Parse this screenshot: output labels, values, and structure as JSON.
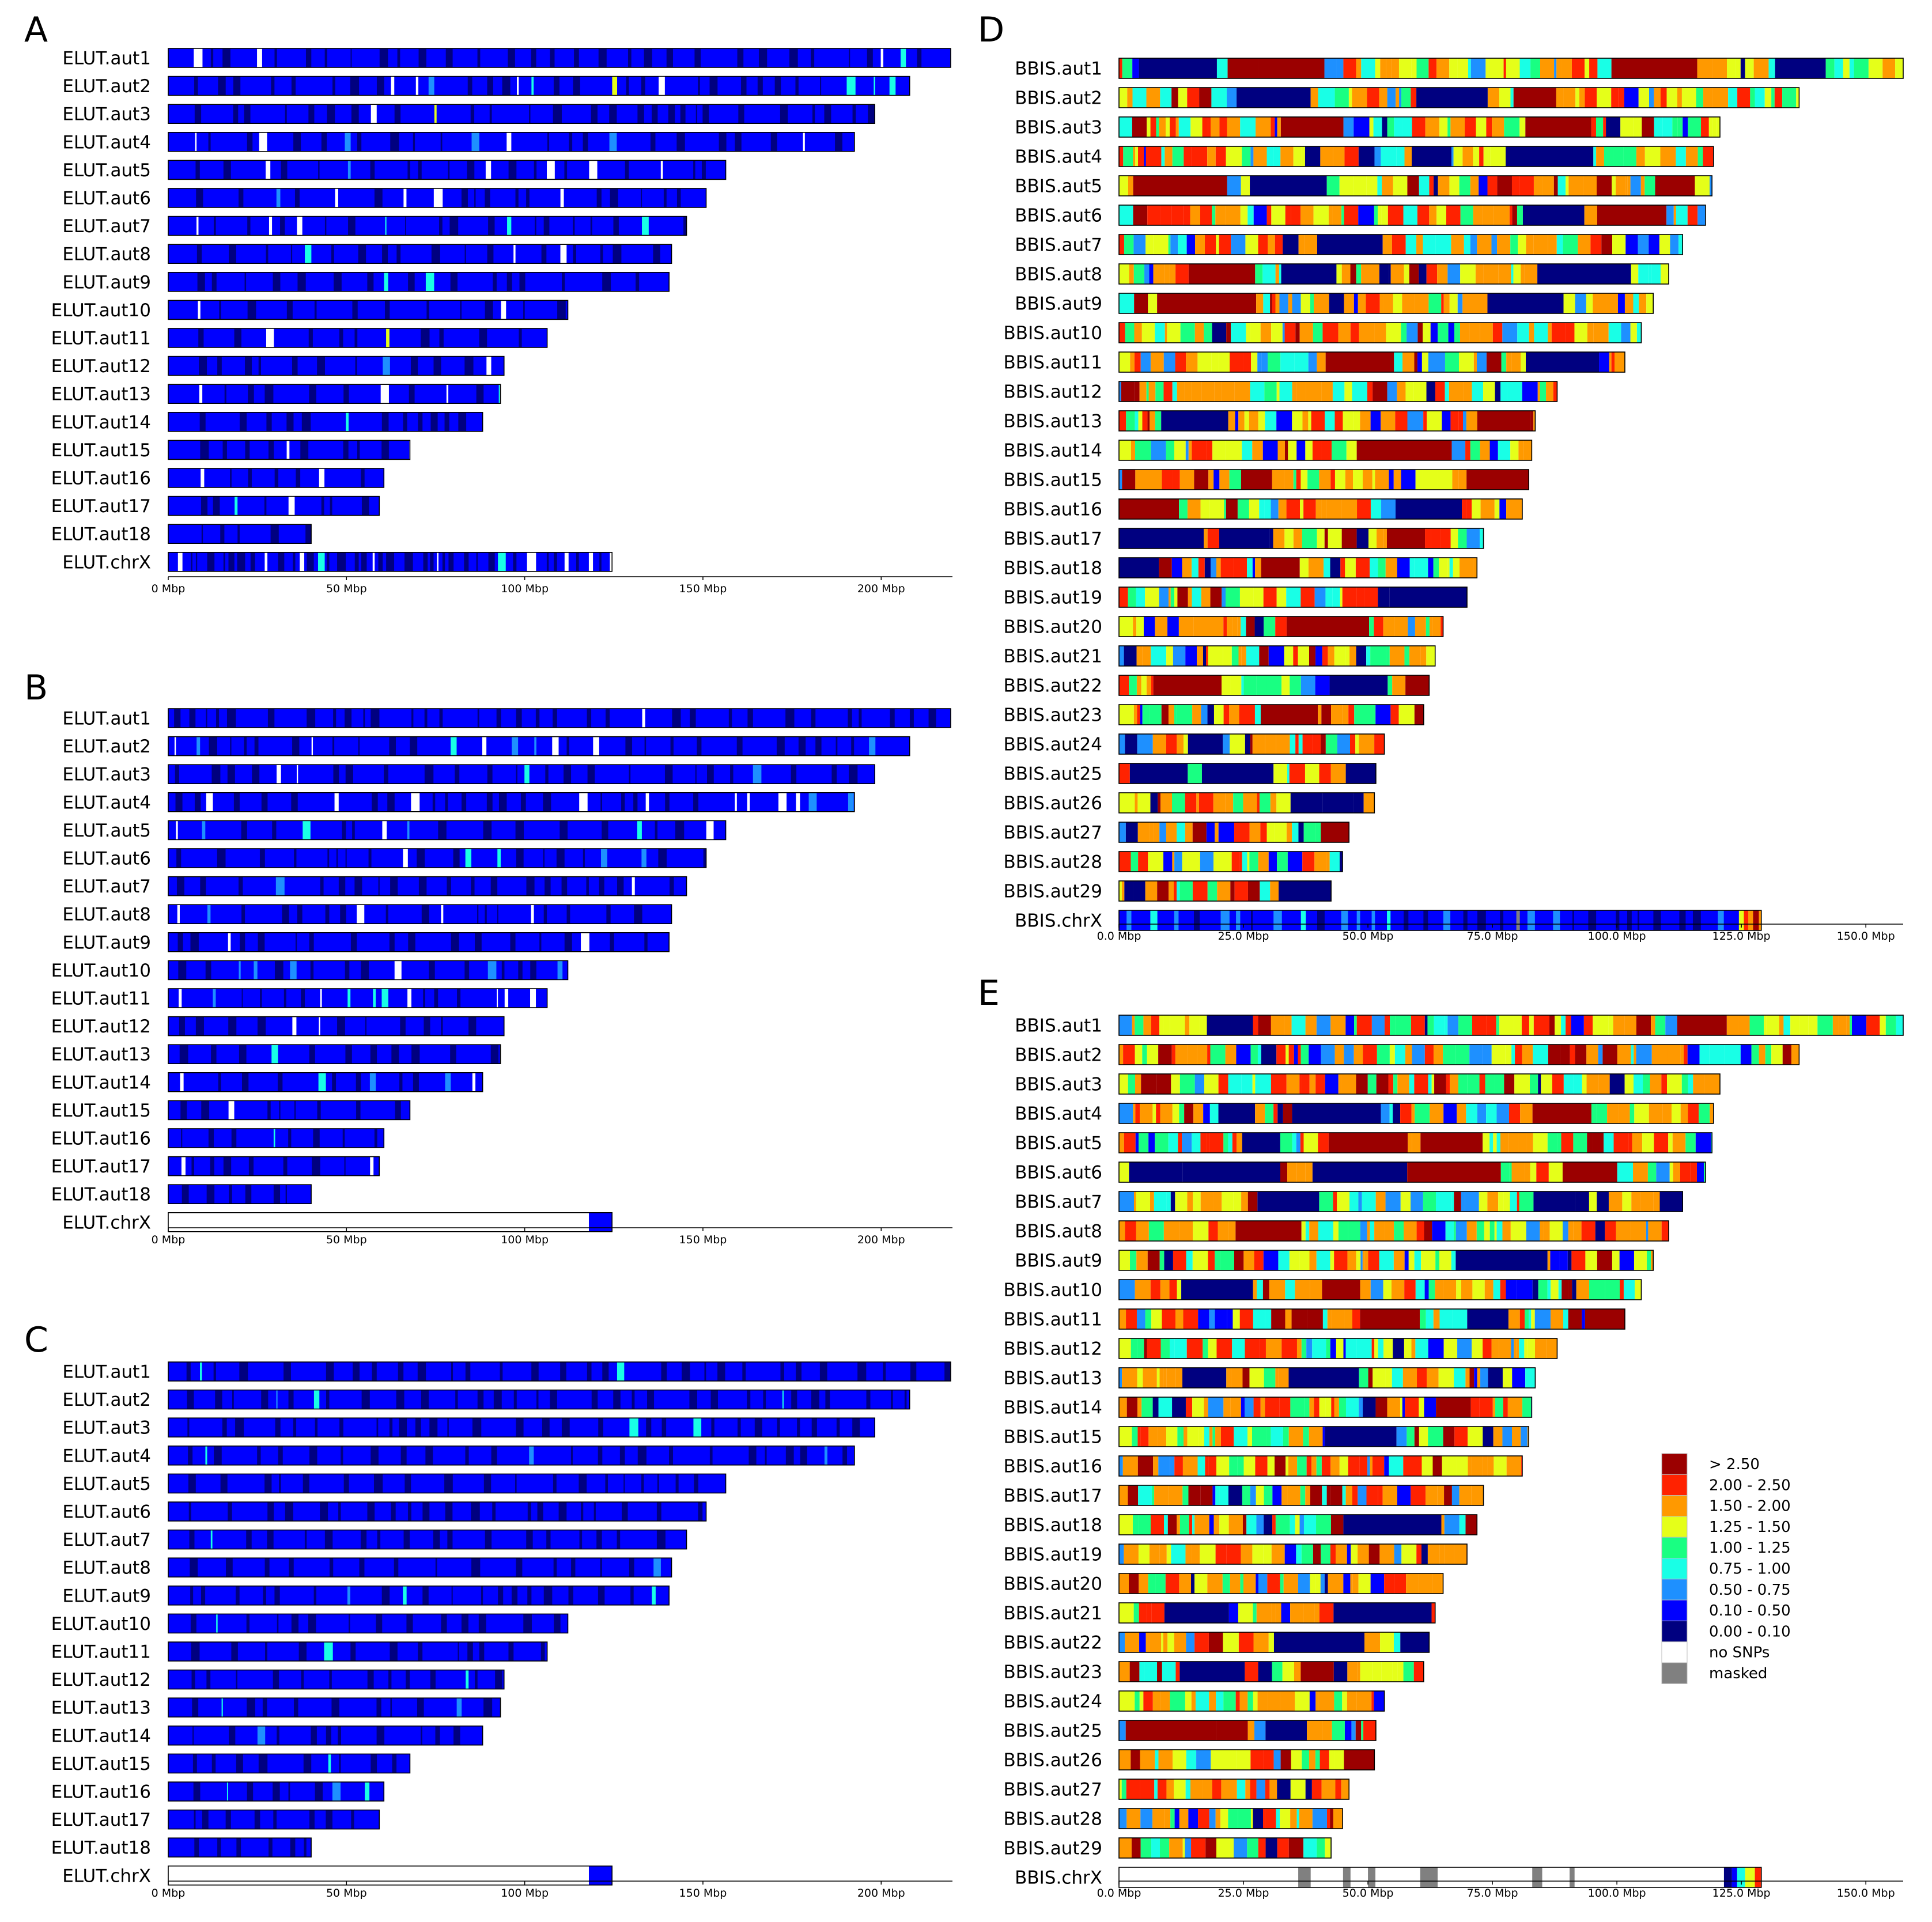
{
  "chart_data": [
    {
      "panel": "A",
      "type": "heatmap",
      "title": "",
      "chromosomes": [
        {
          "name": "ELUT.aut1",
          "length": 219.5
        },
        {
          "name": "ELUT.aut2",
          "length": 208.0
        },
        {
          "name": "ELUT.aut3",
          "length": 198.2
        },
        {
          "name": "ELUT.aut4",
          "length": 192.5
        },
        {
          "name": "ELUT.aut5",
          "length": 156.4
        },
        {
          "name": "ELUT.aut6",
          "length": 150.9
        },
        {
          "name": "ELUT.aut7",
          "length": 145.4
        },
        {
          "name": "ELUT.aut8",
          "length": 141.2
        },
        {
          "name": "ELUT.aut9",
          "length": 140.5
        },
        {
          "name": "ELUT.aut10",
          "length": 112.1
        },
        {
          "name": "ELUT.aut11",
          "length": 106.3
        },
        {
          "name": "ELUT.aut12",
          "length": 94.2
        },
        {
          "name": "ELUT.aut13",
          "length": 93.2
        },
        {
          "name": "ELUT.aut14",
          "length": 88.2
        },
        {
          "name": "ELUT.aut15",
          "length": 67.8
        },
        {
          "name": "ELUT.aut16",
          "length": 60.5
        },
        {
          "name": "ELUT.aut17",
          "length": 59.2
        },
        {
          "name": "ELUT.aut18",
          "length": 40.1
        },
        {
          "name": "ELUT.chrX",
          "length": 124.5
        }
      ],
      "x_ticks": [
        0,
        50,
        100,
        150,
        200
      ],
      "x_tick_labels": [
        "0 Mbp",
        "50 Mbp",
        "100 Mbp",
        "150 Mbp",
        "200 Mbp"
      ],
      "xlim": [
        0,
        220
      ],
      "base_bin": "0.10 - 0.50",
      "speckle_bins": [
        "0.00 - 0.10",
        "no SNPs",
        "0.50 - 0.75",
        "0.75 - 1.00",
        "1.25 - 1.50"
      ],
      "chrX_no_snps_until": null
    },
    {
      "panel": "B",
      "type": "heatmap",
      "title": "",
      "chromosomes": [
        {
          "name": "ELUT.aut1",
          "length": 219.5
        },
        {
          "name": "ELUT.aut2",
          "length": 208.0
        },
        {
          "name": "ELUT.aut3",
          "length": 198.2
        },
        {
          "name": "ELUT.aut4",
          "length": 192.5
        },
        {
          "name": "ELUT.aut5",
          "length": 156.4
        },
        {
          "name": "ELUT.aut6",
          "length": 150.9
        },
        {
          "name": "ELUT.aut7",
          "length": 145.4
        },
        {
          "name": "ELUT.aut8",
          "length": 141.2
        },
        {
          "name": "ELUT.aut9",
          "length": 140.5
        },
        {
          "name": "ELUT.aut10",
          "length": 112.1
        },
        {
          "name": "ELUT.aut11",
          "length": 106.3
        },
        {
          "name": "ELUT.aut12",
          "length": 94.2
        },
        {
          "name": "ELUT.aut13",
          "length": 93.2
        },
        {
          "name": "ELUT.aut14",
          "length": 88.2
        },
        {
          "name": "ELUT.aut15",
          "length": 67.8
        },
        {
          "name": "ELUT.aut16",
          "length": 60.5
        },
        {
          "name": "ELUT.aut17",
          "length": 59.2
        },
        {
          "name": "ELUT.aut18",
          "length": 40.1
        },
        {
          "name": "ELUT.chrX",
          "length": 124.5
        }
      ],
      "x_ticks": [
        0,
        50,
        100,
        150,
        200
      ],
      "x_tick_labels": [
        "0 Mbp",
        "50 Mbp",
        "100 Mbp",
        "150 Mbp",
        "200 Mbp"
      ],
      "xlim": [
        0,
        220
      ],
      "base_bin": "0.10 - 0.50",
      "speckle_bins": [
        "0.00 - 0.10",
        "no SNPs",
        "0.50 - 0.75",
        "0.75 - 1.00"
      ],
      "chrX_no_snps_until": 118.0
    },
    {
      "panel": "C",
      "type": "heatmap",
      "title": "",
      "chromosomes": [
        {
          "name": "ELUT.aut1",
          "length": 219.5
        },
        {
          "name": "ELUT.aut2",
          "length": 208.0
        },
        {
          "name": "ELUT.aut3",
          "length": 198.2
        },
        {
          "name": "ELUT.aut4",
          "length": 192.5
        },
        {
          "name": "ELUT.aut5",
          "length": 156.4
        },
        {
          "name": "ELUT.aut6",
          "length": 150.9
        },
        {
          "name": "ELUT.aut7",
          "length": 145.4
        },
        {
          "name": "ELUT.aut8",
          "length": 141.2
        },
        {
          "name": "ELUT.aut9",
          "length": 140.5
        },
        {
          "name": "ELUT.aut10",
          "length": 112.1
        },
        {
          "name": "ELUT.aut11",
          "length": 106.3
        },
        {
          "name": "ELUT.aut12",
          "length": 94.2
        },
        {
          "name": "ELUT.aut13",
          "length": 93.2
        },
        {
          "name": "ELUT.aut14",
          "length": 88.2
        },
        {
          "name": "ELUT.aut15",
          "length": 67.8
        },
        {
          "name": "ELUT.aut16",
          "length": 60.5
        },
        {
          "name": "ELUT.aut17",
          "length": 59.2
        },
        {
          "name": "ELUT.aut18",
          "length": 40.1
        },
        {
          "name": "ELUT.chrX",
          "length": 124.5
        }
      ],
      "x_ticks": [
        0,
        50,
        100,
        150,
        200
      ],
      "x_tick_labels": [
        "0 Mbp",
        "50 Mbp",
        "100 Mbp",
        "150 Mbp",
        "200 Mbp"
      ],
      "xlim": [
        0,
        220
      ],
      "base_bin": "0.10 - 0.50",
      "speckle_bins": [
        "0.00 - 0.10",
        "0.50 - 0.75",
        "0.75 - 1.00"
      ],
      "chrX_no_snps_until": 118.0
    },
    {
      "panel": "D",
      "type": "heatmap",
      "title": "",
      "chromosomes": [
        {
          "name": "BBIS.aut1",
          "length": 157.5
        },
        {
          "name": "BBIS.aut2",
          "length": 136.6
        },
        {
          "name": "BBIS.aut3",
          "length": 120.7
        },
        {
          "name": "BBIS.aut4",
          "length": 119.4
        },
        {
          "name": "BBIS.aut5",
          "length": 119.1
        },
        {
          "name": "BBIS.aut6",
          "length": 117.8
        },
        {
          "name": "BBIS.aut7",
          "length": 113.2
        },
        {
          "name": "BBIS.aut8",
          "length": 110.4
        },
        {
          "name": "BBIS.aut9",
          "length": 107.3
        },
        {
          "name": "BBIS.aut10",
          "length": 104.9
        },
        {
          "name": "BBIS.aut11",
          "length": 101.6
        },
        {
          "name": "BBIS.aut12",
          "length": 88.0
        },
        {
          "name": "BBIS.aut13",
          "length": 83.6
        },
        {
          "name": "BBIS.aut14",
          "length": 82.9
        },
        {
          "name": "BBIS.aut15",
          "length": 82.3
        },
        {
          "name": "BBIS.aut16",
          "length": 81.0
        },
        {
          "name": "BBIS.aut17",
          "length": 73.2
        },
        {
          "name": "BBIS.aut18",
          "length": 71.9
        },
        {
          "name": "BBIS.aut19",
          "length": 69.9
        },
        {
          "name": "BBIS.aut20",
          "length": 65.1
        },
        {
          "name": "BBIS.aut21",
          "length": 63.5
        },
        {
          "name": "BBIS.aut22",
          "length": 62.3
        },
        {
          "name": "BBIS.aut23",
          "length": 61.2
        },
        {
          "name": "BBIS.aut24",
          "length": 53.3
        },
        {
          "name": "BBIS.aut25",
          "length": 51.6
        },
        {
          "name": "BBIS.aut26",
          "length": 51.3
        },
        {
          "name": "BBIS.aut27",
          "length": 46.2
        },
        {
          "name": "BBIS.aut28",
          "length": 44.9
        },
        {
          "name": "BBIS.aut29",
          "length": 42.6
        },
        {
          "name": "BBIS.chrX",
          "length": 129.0
        }
      ],
      "x_ticks": [
        0,
        25,
        50,
        75,
        100,
        125,
        150
      ],
      "x_tick_labels": [
        "0.0 Mbp",
        "25.0 Mbp",
        "50.0 Mbp",
        "75.0 Mbp",
        "100.0 Mbp",
        "125.0 Mbp",
        "150.0 Mbp"
      ],
      "xlim": [
        0,
        157.5
      ],
      "base_bin": "mixed",
      "chrX_mode": "low"
    },
    {
      "panel": "E",
      "type": "heatmap",
      "title": "",
      "chromosomes": [
        {
          "name": "BBIS.aut1",
          "length": 157.5
        },
        {
          "name": "BBIS.aut2",
          "length": 136.6
        },
        {
          "name": "BBIS.aut3",
          "length": 120.7
        },
        {
          "name": "BBIS.aut4",
          "length": 119.4
        },
        {
          "name": "BBIS.aut5",
          "length": 119.1
        },
        {
          "name": "BBIS.aut6",
          "length": 117.8
        },
        {
          "name": "BBIS.aut7",
          "length": 113.2
        },
        {
          "name": "BBIS.aut8",
          "length": 110.4
        },
        {
          "name": "BBIS.aut9",
          "length": 107.3
        },
        {
          "name": "BBIS.aut10",
          "length": 104.9
        },
        {
          "name": "BBIS.aut11",
          "length": 101.6
        },
        {
          "name": "BBIS.aut12",
          "length": 88.0
        },
        {
          "name": "BBIS.aut13",
          "length": 83.6
        },
        {
          "name": "BBIS.aut14",
          "length": 82.9
        },
        {
          "name": "BBIS.aut15",
          "length": 82.3
        },
        {
          "name": "BBIS.aut16",
          "length": 81.0
        },
        {
          "name": "BBIS.aut17",
          "length": 73.2
        },
        {
          "name": "BBIS.aut18",
          "length": 71.9
        },
        {
          "name": "BBIS.aut19",
          "length": 69.9
        },
        {
          "name": "BBIS.aut20",
          "length": 65.1
        },
        {
          "name": "BBIS.aut21",
          "length": 63.5
        },
        {
          "name": "BBIS.aut22",
          "length": 62.3
        },
        {
          "name": "BBIS.aut23",
          "length": 61.2
        },
        {
          "name": "BBIS.aut24",
          "length": 53.3
        },
        {
          "name": "BBIS.aut25",
          "length": 51.6
        },
        {
          "name": "BBIS.aut26",
          "length": 51.3
        },
        {
          "name": "BBIS.aut27",
          "length": 46.2
        },
        {
          "name": "BBIS.aut28",
          "length": 44.9
        },
        {
          "name": "BBIS.aut29",
          "length": 42.6
        },
        {
          "name": "BBIS.chrX",
          "length": 129.0
        }
      ],
      "x_ticks": [
        0,
        25,
        50,
        75,
        100,
        125,
        150
      ],
      "x_tick_labels": [
        "0.0 Mbp",
        "25.0 Mbp",
        "50.0 Mbp",
        "75.0 Mbp",
        "100.0 Mbp",
        "125.0 Mbp",
        "150.0 Mbp"
      ],
      "xlim": [
        0,
        157.5
      ],
      "base_bin": "mixed",
      "chrX_mode": "nosnp",
      "chrX_masked_regions_mbp": [
        [
          36,
          38.5
        ],
        [
          45,
          46.5
        ],
        [
          50,
          51.5
        ],
        [
          60.5,
          64
        ],
        [
          83,
          85
        ],
        [
          90.5,
          91.5
        ]
      ],
      "chrX_colored_from_mbp": 121.5
    }
  ],
  "legend": {
    "items": [
      {
        "label": "> 2.50",
        "color": "#9b0000"
      },
      {
        "label": "2.00 - 2.50",
        "color": "#ff2200"
      },
      {
        "label": "1.50 - 2.00",
        "color": "#ff9900"
      },
      {
        "label": "1.25 - 1.50",
        "color": "#e5ff19"
      },
      {
        "label": "1.00 - 1.25",
        "color": "#19ff82"
      },
      {
        "label": "0.75 - 1.00",
        "color": "#19ffe6"
      },
      {
        "label": "0.50 - 0.75",
        "color": "#1e90ff"
      },
      {
        "label": "0.10 - 0.50",
        "color": "#0000ff"
      },
      {
        "label": "0.00 - 0.10",
        "color": "#000080"
      },
      {
        "label": "no SNPs",
        "color": "#ffffff"
      },
      {
        "label": "masked",
        "color": "#808080"
      }
    ]
  }
}
